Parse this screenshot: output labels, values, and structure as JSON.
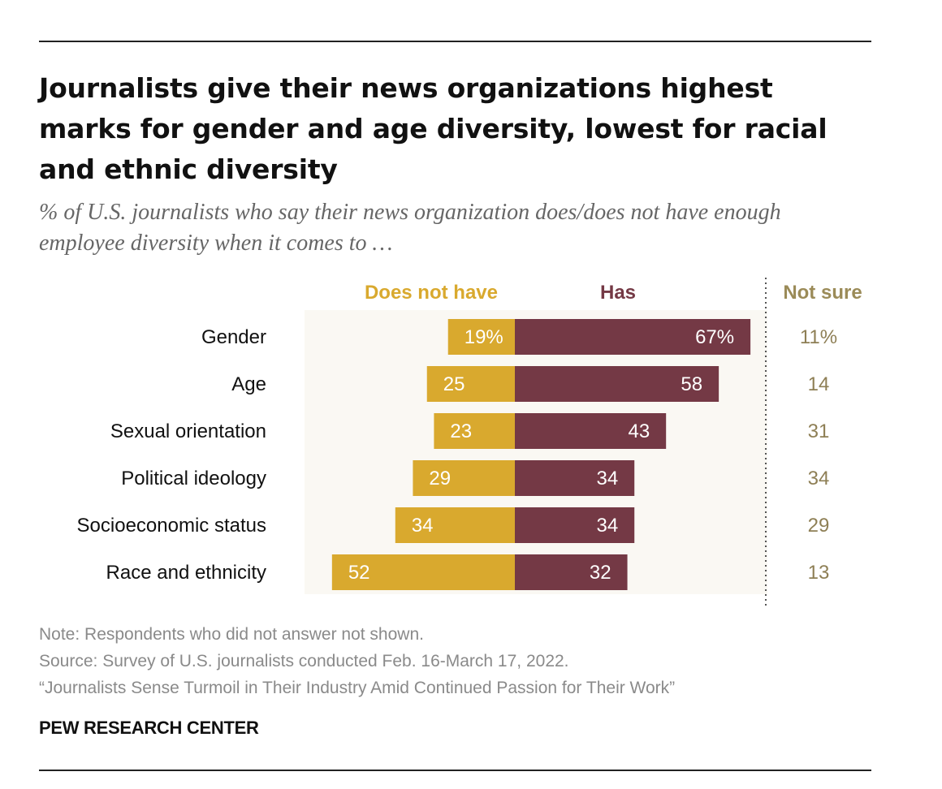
{
  "header": {
    "title": "Journalists give their news organizations highest marks for gender and age diversity, lowest for racial and ethnic diversity",
    "subtitle": "% of U.S. journalists who say their news organization does/does not have enough employee diversity when it comes to …"
  },
  "colors": {
    "does_not_have": "#D9A92E",
    "has": "#743945",
    "not_sure_text": "#8E7F55",
    "not_sure_header": "#9B8B58",
    "band": "#FAF8F3"
  },
  "chart_data": {
    "type": "bar",
    "orientation": "horizontal-diverging",
    "categories": [
      "Gender",
      "Age",
      "Sexual orientation",
      "Political ideology",
      "Socioeconomic status",
      "Race and ethnicity"
    ],
    "series": [
      {
        "name": "Does not have",
        "values": [
          19,
          25,
          23,
          29,
          34,
          52
        ],
        "labels": [
          "19%",
          "25",
          "23",
          "29",
          "34",
          "52"
        ]
      },
      {
        "name": "Has",
        "values": [
          67,
          58,
          43,
          34,
          34,
          32
        ],
        "labels": [
          "67%",
          "58",
          "43",
          "34",
          "34",
          "32"
        ]
      },
      {
        "name": "Not sure",
        "values": [
          11,
          14,
          31,
          34,
          29,
          13
        ],
        "labels": [
          "11%",
          "14",
          "31",
          "34",
          "29",
          "13"
        ]
      }
    ],
    "column_headers": {
      "does_not_have": "Does not have",
      "has": "Has",
      "not_sure": "Not sure"
    }
  },
  "footer": {
    "note": "Note: Respondents who did not answer not shown.",
    "source": "Source: Survey of U.S. journalists conducted Feb. 16-March 17, 2022.",
    "report": "“Journalists Sense Turmoil in Their Industry Amid Continued Passion for Their Work”",
    "brand": "PEW RESEARCH CENTER"
  }
}
